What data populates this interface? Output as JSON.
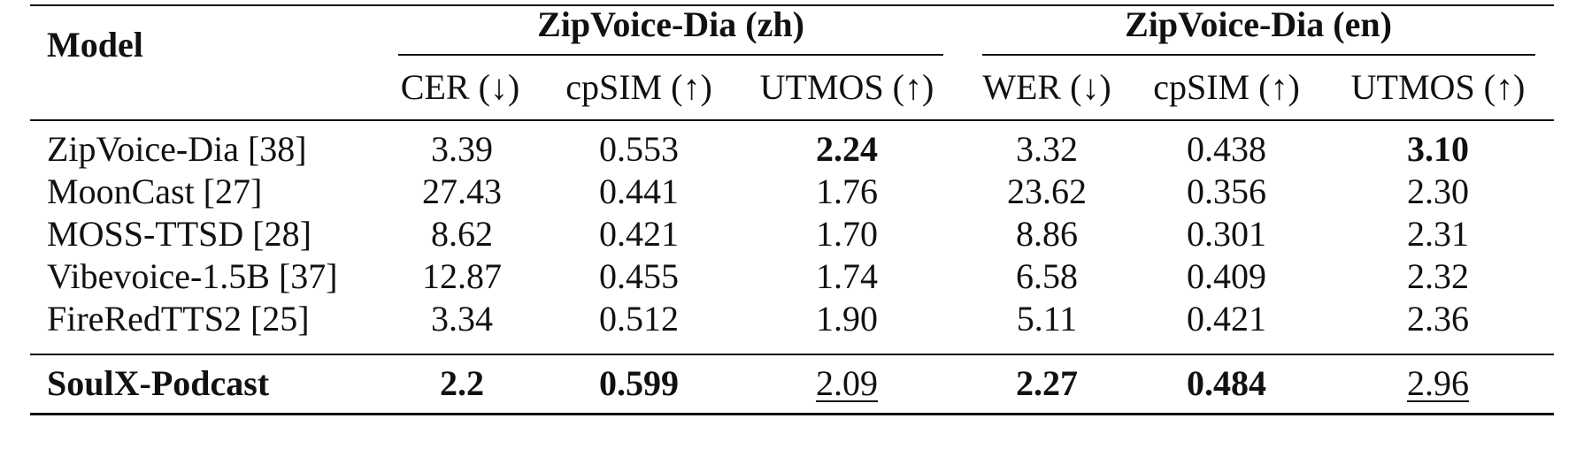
{
  "table": {
    "model_header": "Model",
    "groups": [
      {
        "label": "ZipVoice-Dia (zh)"
      },
      {
        "label": "ZipVoice-Dia (en)"
      }
    ],
    "columns": [
      "CER (↓)",
      "cpSIM (↑)",
      "UTMOS (↑)",
      "WER (↓)",
      "cpSIM (↑)",
      "UTMOS (↑)"
    ],
    "rows": [
      {
        "model": "ZipVoice-Dia [38]",
        "values": [
          "3.39",
          "0.553",
          "2.24",
          "3.32",
          "0.438",
          "3.10"
        ]
      },
      {
        "model": "MoonCast [27]",
        "values": [
          "27.43",
          "0.441",
          "1.76",
          "23.62",
          "0.356",
          "2.30"
        ]
      },
      {
        "model": "MOSS-TTSD [28]",
        "values": [
          "8.62",
          "0.421",
          "1.70",
          "8.86",
          "0.301",
          "2.31"
        ]
      },
      {
        "model": "Vibevoice-1.5B [37]",
        "values": [
          "12.87",
          "0.455",
          "1.74",
          "6.58",
          "0.409",
          "2.32"
        ]
      },
      {
        "model": "FireRedTTS2 [25]",
        "values": [
          "3.34",
          "0.512",
          "1.90",
          "5.11",
          "0.421",
          "2.36"
        ]
      },
      {
        "model": "SoulX-Podcast",
        "values": [
          "2.2",
          "0.599",
          "2.09",
          "2.27",
          "0.484",
          "2.96"
        ]
      }
    ]
  }
}
